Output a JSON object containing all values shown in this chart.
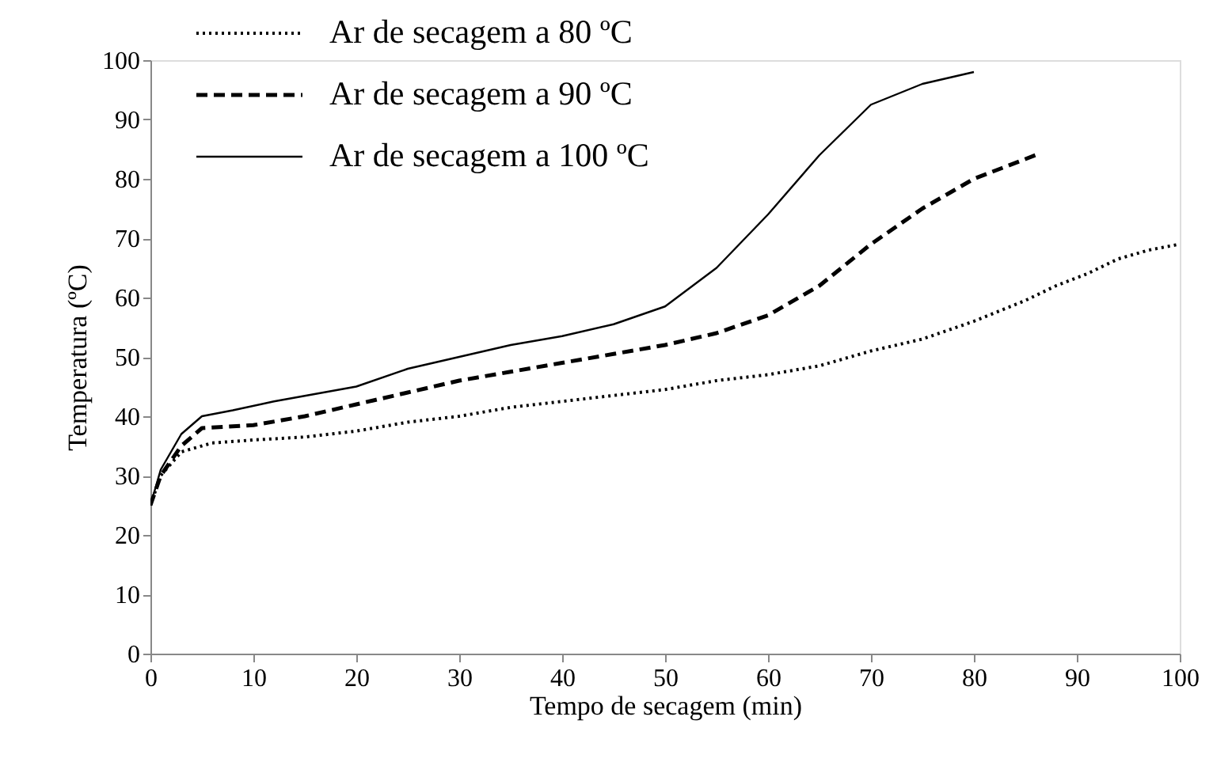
{
  "chart_data": {
    "type": "line",
    "xlabel": "Tempo de secagem (min)",
    "ylabel": "Temperatura (ºC)",
    "xlim": [
      0,
      100
    ],
    "ylim": [
      0,
      100
    ],
    "xticks": [
      0,
      10,
      20,
      30,
      40,
      50,
      60,
      70,
      80,
      90,
      100
    ],
    "yticks": [
      0,
      10,
      20,
      30,
      40,
      50,
      60,
      70,
      80,
      90,
      100
    ],
    "grid": false,
    "legend": "top left",
    "marker": "none",
    "series": [
      {
        "name": "Ar de secagem a 80 ºC",
        "color": "#000000",
        "line_style": "dotted",
        "x": [
          0,
          1,
          3,
          6,
          10,
          15,
          20,
          25,
          30,
          35,
          40,
          45,
          50,
          55,
          60,
          65,
          70,
          75,
          80,
          85,
          88,
          91,
          94,
          97,
          100
        ],
        "values": [
          25,
          30,
          34,
          35.5,
          36,
          36.5,
          37.5,
          39,
          40,
          41.5,
          42.5,
          43.5,
          44.5,
          46,
          47,
          48.5,
          51,
          53,
          56,
          59.5,
          62,
          64,
          66.5,
          68,
          69
        ]
      },
      {
        "name": "Ar de secagem a 90 ºC",
        "color": "#000000",
        "line_style": "dashed",
        "x": [
          0,
          1,
          3,
          5,
          10,
          15,
          20,
          25,
          30,
          35,
          40,
          45,
          50,
          55,
          60,
          65,
          70,
          75,
          80,
          86
        ],
        "values": [
          25,
          30,
          35,
          38,
          38.5,
          40,
          42,
          44,
          46,
          47.5,
          49,
          50.5,
          52,
          54,
          57,
          62,
          69,
          75,
          80,
          84
        ]
      },
      {
        "name": "Ar de secagem a 100 ºC",
        "color": "#000000",
        "line_style": "solid",
        "x": [
          0,
          1,
          3,
          5,
          8,
          12,
          20,
          25,
          30,
          35,
          40,
          45,
          50,
          55,
          60,
          65,
          70,
          75,
          80
        ],
        "values": [
          25,
          31,
          37,
          40,
          41,
          42.5,
          45,
          48,
          50,
          52,
          53.5,
          55.5,
          58.5,
          65,
          74,
          84,
          92.5,
          96,
          98
        ]
      }
    ]
  }
}
